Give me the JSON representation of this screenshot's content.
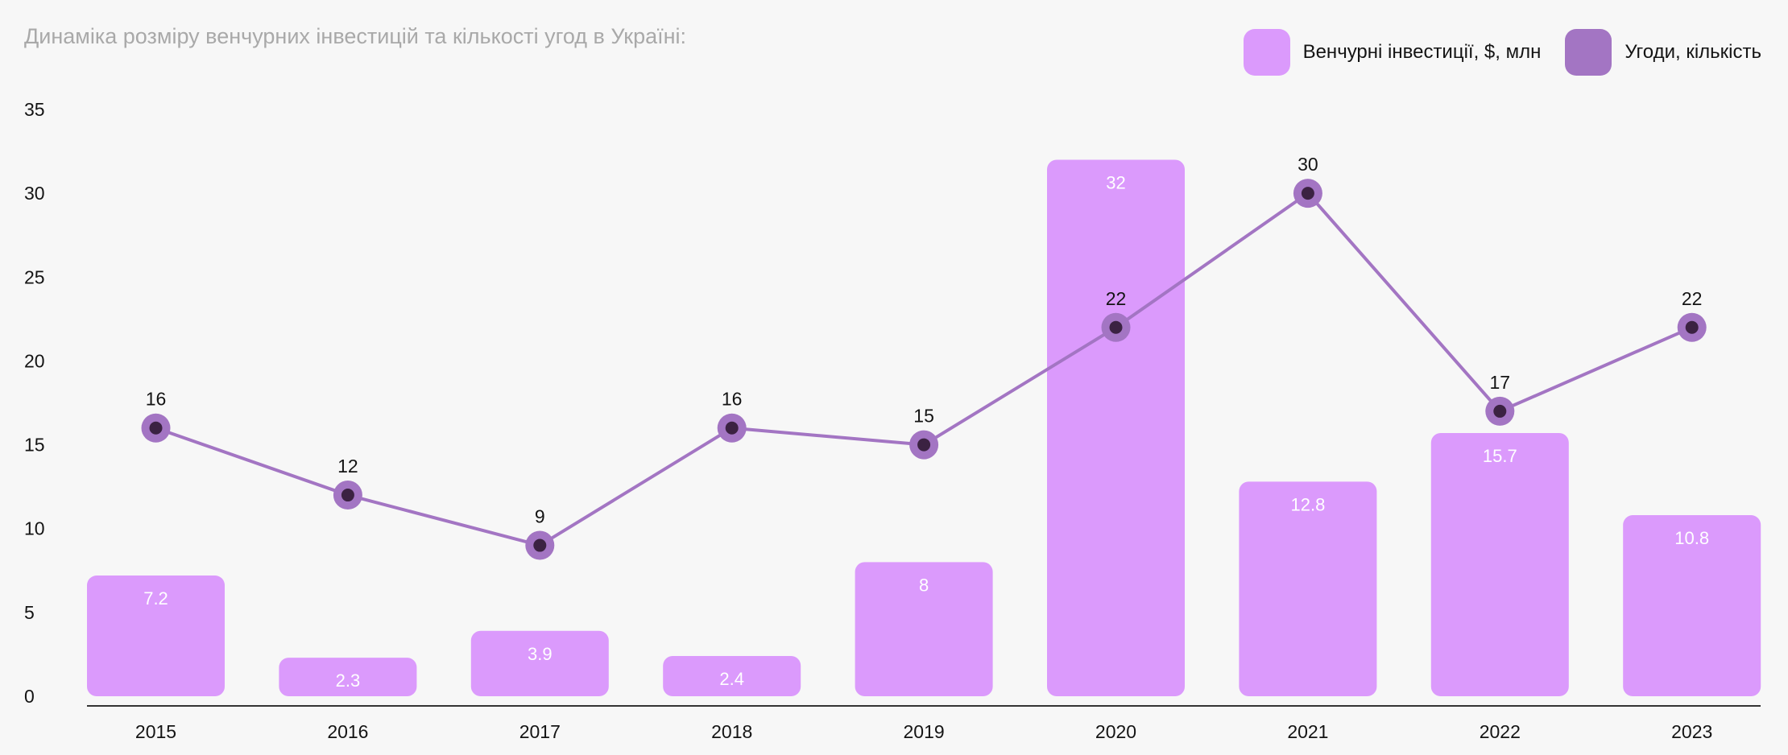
{
  "chart_data": {
    "type": "bar",
    "title": "Динаміка розміру венчурних інвестицій та кількості угод в Україні:",
    "categories": [
      "2015",
      "2016",
      "2017",
      "2018",
      "2019",
      "2020",
      "2021",
      "2022",
      "2023"
    ],
    "ylim": [
      0,
      35
    ],
    "yticks": [
      0,
      5,
      10,
      15,
      20,
      25,
      30,
      35
    ],
    "ytick_labels": [
      "0",
      "5",
      "10",
      "15",
      "20",
      "25",
      "30",
      "35"
    ],
    "grid": false,
    "legend_position": "top-right",
    "series": [
      {
        "name": "Венчурні інвестиції, $, млн",
        "type": "bar",
        "color": "#db9afc",
        "values": [
          7.2,
          2.3,
          3.9,
          2.4,
          8,
          32,
          12.8,
          15.7,
          10.8
        ],
        "labels": [
          "7.2",
          "2.3",
          "3.9",
          "2.4",
          "8",
          "32",
          "12.8",
          "15.7",
          "10.8"
        ]
      },
      {
        "name": "Угоди, кількість",
        "type": "line",
        "color": "#a375c3",
        "marker_color": "#3b2242",
        "values": [
          16,
          12,
          9,
          16,
          15,
          22,
          30,
          17,
          22
        ],
        "labels": [
          "16",
          "12",
          "9",
          "16",
          "15",
          "22",
          "30",
          "17",
          "22"
        ]
      }
    ]
  },
  "colors": {
    "background": "#f7f7f7",
    "axis": "#333333",
    "title": "#a9a9a9",
    "text": "#141414"
  }
}
